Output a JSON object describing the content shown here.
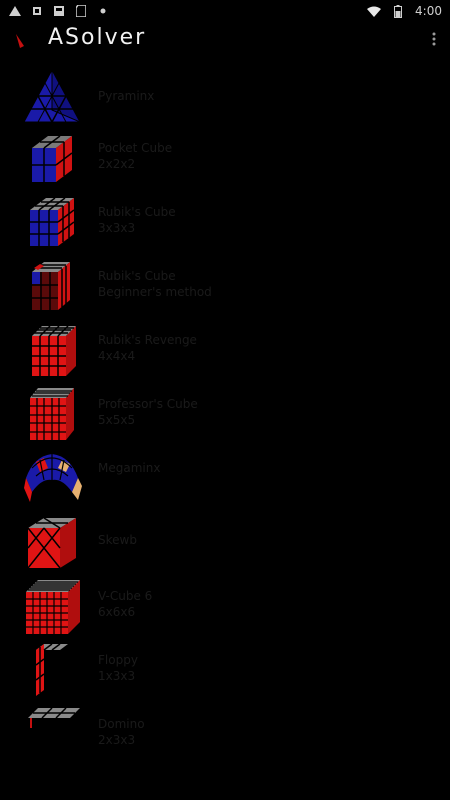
{
  "status": {
    "time": "4:00",
    "left_icons": [
      "alert-icon",
      "sim-icon",
      "image-icon",
      "sd-icon",
      "dot-icon"
    ],
    "right_icons": [
      "wifi-icon",
      "battery-icon"
    ]
  },
  "app": {
    "title": "ASolver",
    "colors": {
      "background": "#000000",
      "text": "#e8e8e8",
      "cube_red": "#e01414",
      "cube_blue": "#1a1aa8",
      "cube_gray": "#8a8a8a"
    }
  },
  "puzzles": [
    {
      "line1": "Pyraminx",
      "line2": "",
      "icon": "pyraminx-icon"
    },
    {
      "line1": "Pocket Cube",
      "line2": "2x2x2",
      "icon": "pocket-cube-icon"
    },
    {
      "line1": "Rubik's Cube",
      "line2": "3x3x3",
      "icon": "rubiks-cube-icon"
    },
    {
      "line1": "Rubik's Cube",
      "line2": "Beginner's method",
      "icon": "rubiks-cube-beginner-icon"
    },
    {
      "line1": "Rubik's Revenge",
      "line2": "4x4x4",
      "icon": "revenge-cube-icon"
    },
    {
      "line1": "Professor's Cube",
      "line2": "5x5x5",
      "icon": "professor-cube-icon"
    },
    {
      "line1": "Megaminx",
      "line2": "",
      "icon": "megaminx-icon"
    },
    {
      "line1": "Skewb",
      "line2": "",
      "icon": "skewb-icon"
    },
    {
      "line1": "V-Cube 6",
      "line2": "6x6x6",
      "icon": "vcube6-icon"
    },
    {
      "line1": "Floppy",
      "line2": "1x3x3",
      "icon": "floppy-icon"
    },
    {
      "line1": "Domino",
      "line2": "2x3x3",
      "icon": "domino-icon"
    }
  ]
}
